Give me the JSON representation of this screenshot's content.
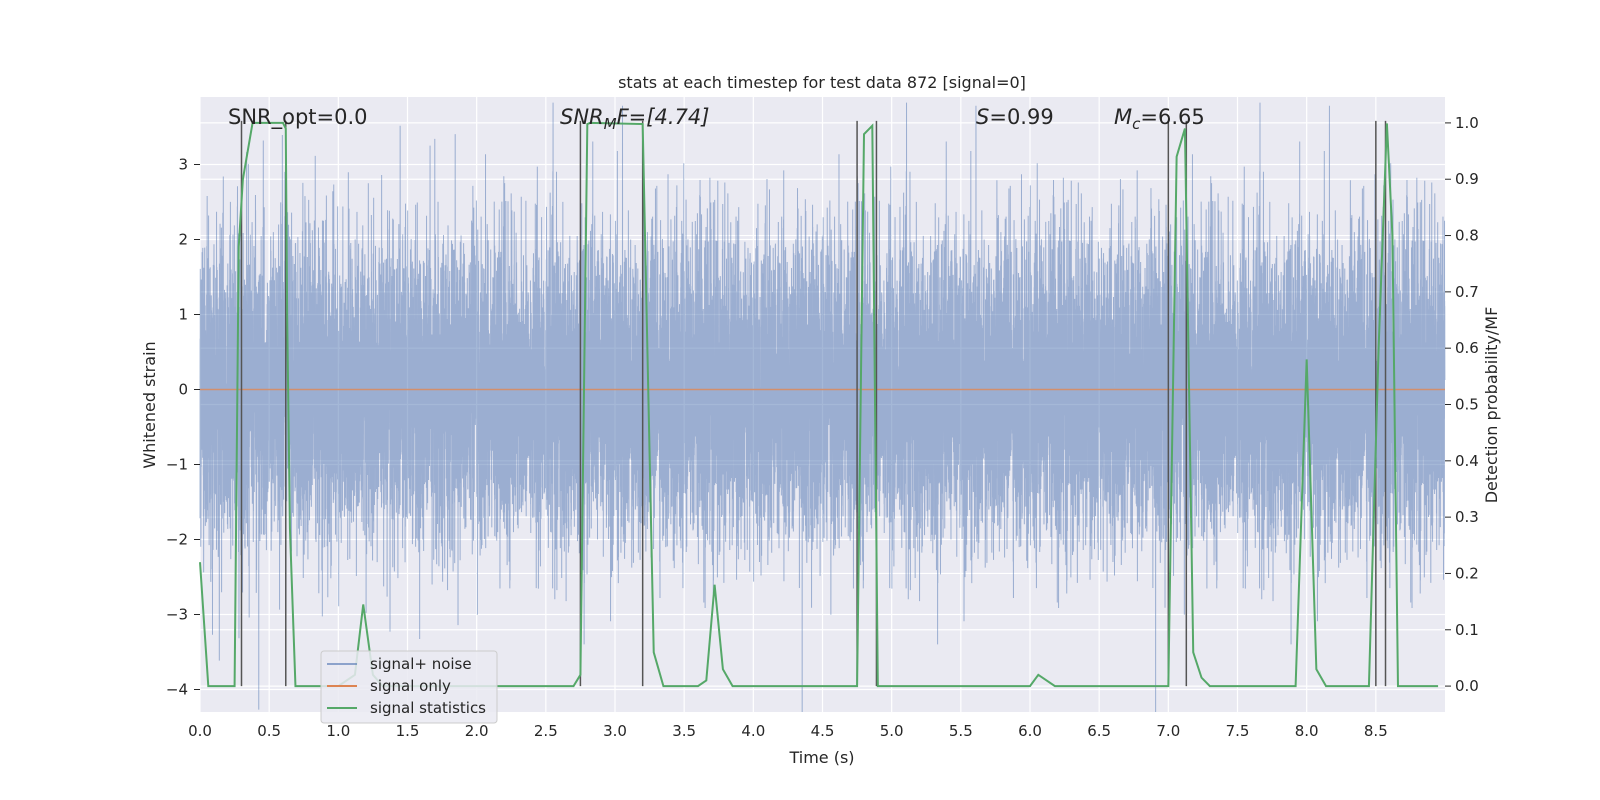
{
  "chart_data": {
    "type": "line",
    "title": "stats at each timestep for test data 872 [signal=0]",
    "xlabel": "Time (s)",
    "ylabel": "Whitened strain",
    "y2label": "Detection probability/MF",
    "xlim": [
      0.0,
      9.0
    ],
    "ylim": [
      -4.3,
      3.9
    ],
    "y2lim": [
      -0.046,
      1.046
    ],
    "grid": true,
    "legend_position": "lower-left",
    "x_ticks": [
      0.0,
      0.5,
      1.0,
      1.5,
      2.0,
      2.5,
      3.0,
      3.5,
      4.0,
      4.5,
      5.0,
      5.5,
      6.0,
      6.5,
      7.0,
      7.5,
      8.0,
      8.5
    ],
    "x_tick_labels": [
      "0.0",
      "0.5",
      "1.0",
      "1.5",
      "2.0",
      "2.5",
      "3.0",
      "3.5",
      "4.0",
      "4.5",
      "5.0",
      "5.5",
      "6.0",
      "6.5",
      "7.0",
      "7.5",
      "8.0",
      "8.5"
    ],
    "y_ticks": [
      -4,
      -3,
      -2,
      -1,
      0,
      1,
      2,
      3
    ],
    "y_tick_labels": [
      "−4",
      "−3",
      "−2",
      "−1",
      "0",
      "1",
      "2",
      "3"
    ],
    "y2_ticks": [
      0.0,
      0.1,
      0.2,
      0.3,
      0.4,
      0.5,
      0.6,
      0.7,
      0.8,
      0.9,
      1.0
    ],
    "y2_tick_labels": [
      "0.0",
      "0.1",
      "0.2",
      "0.3",
      "0.4",
      "0.5",
      "0.6",
      "0.7",
      "0.8",
      "0.9",
      "1.0"
    ],
    "annotations": {
      "snr_opt": "SNR_opt=0.0",
      "snr_mf_sym": "SNR",
      "snr_mf_sub": "M",
      "snr_mf_rest": "F=[4.74]",
      "s_sym": "S",
      "s_rest": "=0.99",
      "mc_sym": "M",
      "mc_sub": "c",
      "mc_rest": "=6.65"
    },
    "series": [
      {
        "name": "signal+ noise",
        "color": "#4c72b0",
        "kind": "noise",
        "sample_rate": 2048,
        "std": 1.0,
        "clip": [
          -4.3,
          3.9
        ]
      },
      {
        "name": "signal only",
        "color": "#dd8452",
        "kind": "flat",
        "value": 0.0
      },
      {
        "name": "signal statistics",
        "color": "#55a868",
        "axis": "right",
        "x": [
          0.0,
          0.06,
          0.25,
          0.28,
          0.31,
          0.38,
          0.6,
          0.62,
          0.63,
          0.65,
          0.69,
          1.0,
          1.12,
          1.18,
          1.25,
          1.32,
          2.6,
          2.7,
          2.75,
          2.8,
          2.82,
          3.2,
          3.28,
          3.35,
          3.6,
          3.66,
          3.72,
          3.78,
          3.85,
          4.5,
          4.75,
          4.8,
          4.86,
          4.9,
          4.93,
          5.8,
          6.0,
          6.06,
          6.18,
          7.0,
          7.06,
          7.12,
          7.18,
          7.24,
          7.3,
          7.8,
          7.92,
          8.0,
          8.07,
          8.14,
          8.45,
          8.52,
          8.58,
          8.62,
          8.66,
          8.95
        ],
        "values": [
          0.22,
          0.0,
          0.0,
          0.78,
          0.9,
          1.0,
          1.0,
          0.99,
          0.66,
          0.28,
          0.0,
          0.0,
          0.02,
          0.145,
          0.02,
          0.0,
          0.0,
          0.0,
          0.02,
          0.998,
          1.0,
          0.998,
          0.06,
          0.0,
          0.0,
          0.01,
          0.18,
          0.03,
          0.0,
          0.0,
          0.0,
          0.98,
          0.995,
          0.0,
          0.0,
          0.0,
          0.0,
          0.02,
          0.0,
          0.0,
          0.94,
          0.99,
          0.06,
          0.015,
          0.0,
          0.0,
          0.0,
          0.58,
          0.03,
          0.0,
          0.0,
          0.6,
          0.999,
          0.8,
          0.0,
          0.0
        ]
      }
    ],
    "vertical_lines_x": [
      0.3,
      0.62,
      2.75,
      3.2,
      4.75,
      4.89,
      7.0,
      7.13,
      8.5,
      8.57
    ],
    "vertical_lines_color": "#555555"
  }
}
